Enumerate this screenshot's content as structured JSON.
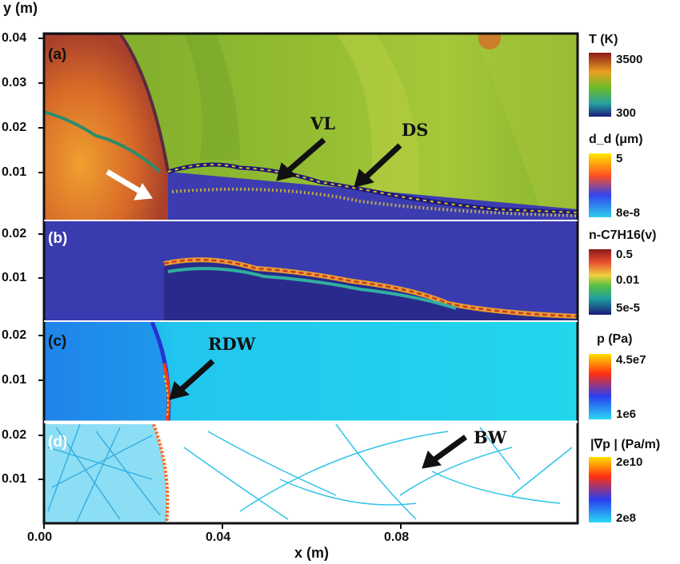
{
  "figure": {
    "x_axis": {
      "label": "x (m)",
      "ticks": [
        "0.00",
        "0.04",
        "0.08"
      ]
    },
    "y_axis": {
      "label": "y (m)"
    },
    "panels": [
      {
        "tag": "(a)",
        "y_ticks": [
          "0.04",
          "0.03",
          "0.02",
          "0.01"
        ],
        "annotations": [
          "VL",
          "DS"
        ]
      },
      {
        "tag": "(b)",
        "y_ticks": [
          "0.02",
          "0.01"
        ],
        "annotations": []
      },
      {
        "tag": "(c)",
        "y_ticks": [
          "0.02",
          "0.01"
        ],
        "annotations": [
          "RDW"
        ]
      },
      {
        "tag": "(d)",
        "y_ticks": [
          "0.02",
          "0.01"
        ],
        "annotations": [
          "BW"
        ]
      }
    ],
    "colorbars": [
      {
        "title": "T (K)",
        "max": "3500",
        "min": "300",
        "colors": [
          "#8a1a1a",
          "#e8a020",
          "#6cbb2a",
          "#26a0a0",
          "#1a1a7a"
        ]
      },
      {
        "title": "d_d (μm)",
        "max": "5",
        "min": "8e-8",
        "colors": [
          "#ffe800",
          "#ff5020",
          "#3344ee",
          "#30ccee"
        ]
      },
      {
        "title": "n-C7H16(v)",
        "max": "0.5",
        "mid": "0.01",
        "min": "5e-5",
        "colors": [
          "#8a1a1a",
          "#e85030",
          "#f0d040",
          "#5ac040",
          "#20a0a0",
          "#1a1a7a"
        ]
      },
      {
        "title": "p (Pa)",
        "max": "4.5e7",
        "min": "1e6",
        "colors": [
          "#ffe000",
          "#ff3010",
          "#2a3ef0",
          "#28d8f2"
        ]
      },
      {
        "title": "|∇p | (Pa/m)",
        "max": "2e10",
        "min": "2e8",
        "colors": [
          "#ffe000",
          "#ff3010",
          "#2a3ef0",
          "#28d8f2"
        ]
      }
    ],
    "colors": {
      "sky_green": "#8ab830",
      "burned_red": "#a8402a",
      "spray_blue": "#3c3cb0",
      "panel_b_bg": "#3b3bb0",
      "panel_c_bg": "#22d6ec",
      "frame": "#111111"
    }
  }
}
